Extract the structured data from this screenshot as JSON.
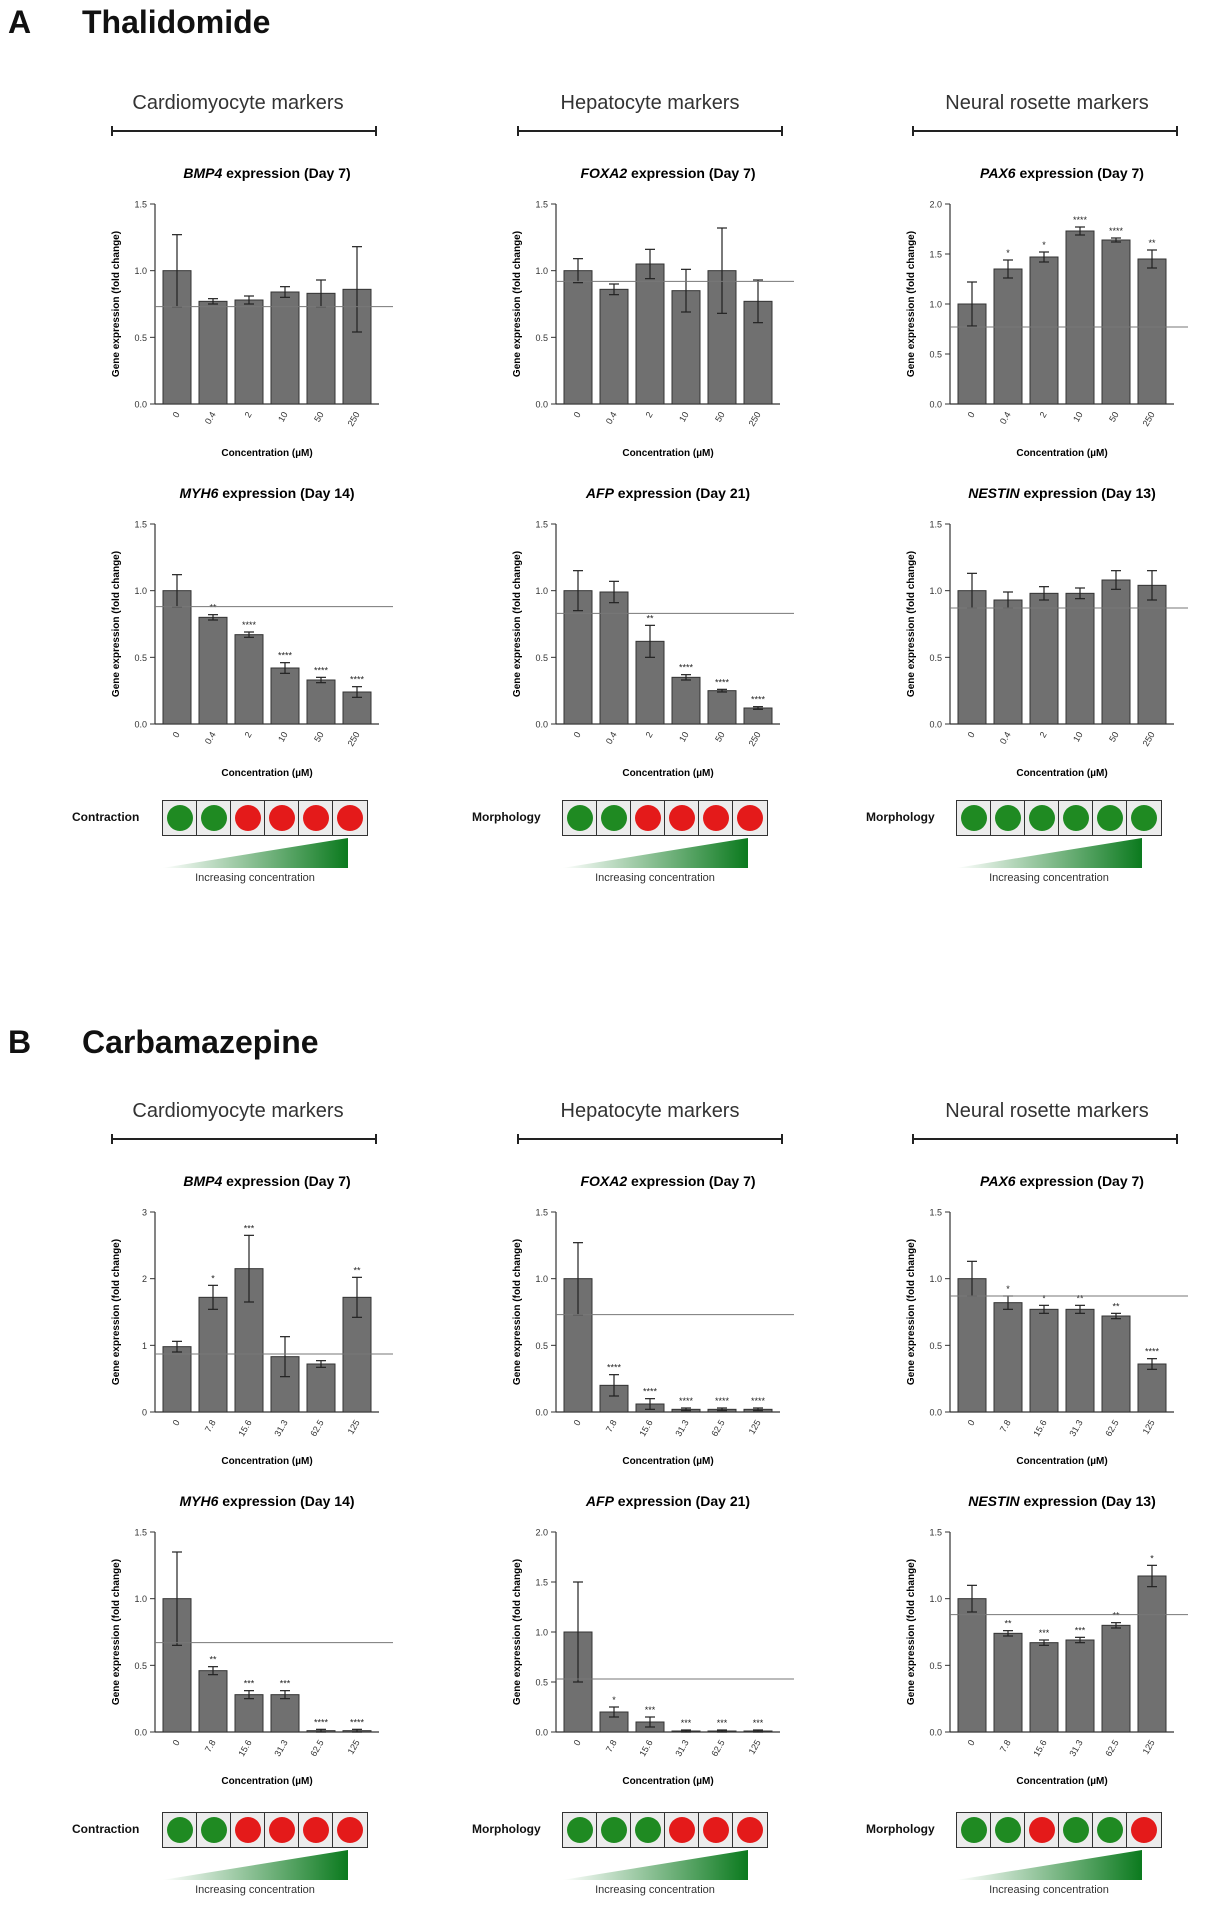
{
  "colors": {
    "bar": "#707070",
    "green": "#1f8a22",
    "red": "#e41a1a",
    "ramp_dark": "#0b7a1e"
  },
  "sections": [
    {
      "letter": "A",
      "title": "Thalidomide",
      "columns": [
        {
          "header": "Cardiomyocyte markers"
        },
        {
          "header": "Hepatocyte markers"
        },
        {
          "header": "Neural rosette markers"
        }
      ],
      "indicators": [
        {
          "label": "Contraction",
          "states": [
            "green",
            "green",
            "red",
            "red",
            "red",
            "red"
          ],
          "caption": "Increasing concentration"
        },
        {
          "label": "Morphology",
          "states": [
            "green",
            "green",
            "red",
            "red",
            "red",
            "red"
          ],
          "caption": "Increasing concentration"
        },
        {
          "label": "Morphology",
          "states": [
            "green",
            "green",
            "green",
            "green",
            "green",
            "green"
          ],
          "caption": "Increasing concentration"
        }
      ]
    },
    {
      "letter": "B",
      "title": "Carbamazepine",
      "columns": [
        {
          "header": "Cardiomyocyte markers"
        },
        {
          "header": "Hepatocyte markers"
        },
        {
          "header": "Neural rosette markers"
        }
      ],
      "indicators": [
        {
          "label": "Contraction",
          "states": [
            "green",
            "green",
            "red",
            "red",
            "red",
            "red"
          ],
          "caption": "Increasing concentration"
        },
        {
          "label": "Morphology",
          "states": [
            "green",
            "green",
            "green",
            "red",
            "red",
            "red"
          ],
          "caption": "Increasing concentration"
        },
        {
          "label": "Morphology",
          "states": [
            "green",
            "green",
            "red",
            "green",
            "green",
            "red"
          ],
          "caption": "Increasing concentration"
        }
      ]
    }
  ],
  "chart_data": [
    {
      "type": "bar",
      "gene": "BMP4",
      "title_suffix": " expression (Day 7)",
      "categories": [
        "0",
        "0.4",
        "2",
        "10",
        "50",
        "250"
      ],
      "values": [
        1.0,
        0.77,
        0.78,
        0.84,
        0.83,
        0.86
      ],
      "errors": [
        0.27,
        0.02,
        0.03,
        0.04,
        0.1,
        0.32
      ],
      "significance": [
        "",
        "",
        "",
        "",
        "",
        ""
      ],
      "threshold": 0.73,
      "threshold_label": "Threshold",
      "ylim": [
        0,
        1.5
      ],
      "yticks": [
        "0.0",
        "0.5",
        "1.0",
        "1.5"
      ],
      "ylabel": "Gene expression (fold change)",
      "xlabel": "Concentration (µM)"
    },
    {
      "type": "bar",
      "gene": "FOXA2",
      "title_suffix": " expression (Day 7)",
      "categories": [
        "0",
        "0.4",
        "2",
        "10",
        "50",
        "250"
      ],
      "values": [
        1.0,
        0.86,
        1.05,
        0.85,
        1.0,
        0.77
      ],
      "errors": [
        0.09,
        0.04,
        0.11,
        0.16,
        0.32,
        0.16
      ],
      "significance": [
        "",
        "",
        "",
        "",
        "",
        ""
      ],
      "threshold": 0.92,
      "threshold_label": "Threshold",
      "ylim": [
        0,
        1.5
      ],
      "yticks": [
        "0.0",
        "0.5",
        "1.0",
        "1.5"
      ],
      "ylabel": "Gene expression (fold change)",
      "xlabel": "Concentration (µM)"
    },
    {
      "type": "bar",
      "gene": "PAX6",
      "title_suffix": " expression (Day 7)",
      "categories": [
        "0",
        "0.4",
        "2",
        "10",
        "50",
        "250"
      ],
      "values": [
        1.0,
        1.35,
        1.47,
        1.73,
        1.64,
        1.45
      ],
      "errors": [
        0.22,
        0.09,
        0.05,
        0.04,
        0.02,
        0.09
      ],
      "significance": [
        "",
        "*",
        "*",
        "****",
        "****",
        "**"
      ],
      "threshold": 0.77,
      "threshold_label": "Threshold",
      "ylim": [
        0,
        2.0
      ],
      "yticks": [
        "0.0",
        "0.5",
        "1.0",
        "1.5",
        "2.0"
      ],
      "ylabel": "Gene expression (fold change)",
      "xlabel": "Concentration (µM)"
    },
    {
      "type": "bar",
      "gene": "MYH6",
      "title_suffix": " expression (Day 14)",
      "categories": [
        "0",
        "0.4",
        "2",
        "10",
        "50",
        "250"
      ],
      "values": [
        1.0,
        0.8,
        0.67,
        0.42,
        0.33,
        0.24
      ],
      "errors": [
        0.12,
        0.02,
        0.02,
        0.04,
        0.02,
        0.04
      ],
      "significance": [
        "",
        "**",
        "****",
        "****",
        "****",
        "****"
      ],
      "threshold": 0.88,
      "threshold_label": "Threshold",
      "ylim": [
        0,
        1.5
      ],
      "yticks": [
        "0.0",
        "0.5",
        "1.0",
        "1.5"
      ],
      "ylabel": "Gene expression (fold change)",
      "xlabel": "Concentration (µM)"
    },
    {
      "type": "bar",
      "gene": "AFP",
      "title_suffix": " expression (Day 21)",
      "categories": [
        "0",
        "0.4",
        "2",
        "10",
        "50",
        "250"
      ],
      "values": [
        1.0,
        0.99,
        0.62,
        0.35,
        0.25,
        0.12
      ],
      "errors": [
        0.15,
        0.08,
        0.12,
        0.02,
        0.01,
        0.01
      ],
      "significance": [
        "",
        "",
        "**",
        "****",
        "****",
        "****"
      ],
      "threshold": 0.83,
      "threshold_label": "Threshold",
      "ylim": [
        0,
        1.5
      ],
      "yticks": [
        "0.0",
        "0.5",
        "1.0",
        "1.5"
      ],
      "ylabel": "Gene expression (fold change)",
      "xlabel": "Concentration (µM)"
    },
    {
      "type": "bar",
      "gene": "NESTIN",
      "title_suffix": " expression (Day 13)",
      "categories": [
        "0",
        "0.4",
        "2",
        "10",
        "50",
        "250"
      ],
      "values": [
        1.0,
        0.93,
        0.98,
        0.98,
        1.08,
        1.04
      ],
      "errors": [
        0.13,
        0.06,
        0.05,
        0.04,
        0.07,
        0.11
      ],
      "significance": [
        "",
        "",
        "",
        "",
        "",
        ""
      ],
      "threshold": 0.87,
      "threshold_label": "Threshold",
      "ylim": [
        0,
        1.5
      ],
      "yticks": [
        "0.0",
        "0.5",
        "1.0",
        "1.5"
      ],
      "ylabel": "Gene expression (fold change)",
      "xlabel": "Concentration (µM)"
    },
    {
      "type": "bar",
      "gene": "BMP4",
      "title_suffix": " expression (Day 7)",
      "categories": [
        "0",
        "7.8",
        "15.6",
        "31.3",
        "62.5",
        "125"
      ],
      "values": [
        0.98,
        1.72,
        2.15,
        0.83,
        0.72,
        1.72
      ],
      "errors": [
        0.08,
        0.18,
        0.5,
        0.3,
        0.05,
        0.3
      ],
      "significance": [
        "",
        "*",
        "***",
        "",
        "",
        "**"
      ],
      "threshold": 0.87,
      "threshold_label": "Threshold",
      "ylim": [
        0,
        3
      ],
      "yticks": [
        "0",
        "1",
        "2",
        "3"
      ],
      "ylabel": "Gene expression (fold change)",
      "xlabel": "Concentration (µM)"
    },
    {
      "type": "bar",
      "gene": "FOXA2",
      "title_suffix": " expression (Day 7)",
      "categories": [
        "0",
        "7.8",
        "15.6",
        "31.3",
        "62.5",
        "125"
      ],
      "values": [
        1.0,
        0.2,
        0.06,
        0.02,
        0.02,
        0.02
      ],
      "errors": [
        0.27,
        0.08,
        0.04,
        0.01,
        0.01,
        0.01
      ],
      "significance": [
        "",
        "****",
        "****",
        "****",
        "****",
        "****"
      ],
      "threshold": 0.73,
      "threshold_label": "Threshold",
      "ylim": [
        0,
        1.5
      ],
      "yticks": [
        "0.0",
        "0.5",
        "1.0",
        "1.5"
      ],
      "ylabel": "Gene expression (fold change)",
      "xlabel": "Concentration (µM)"
    },
    {
      "type": "bar",
      "gene": "PAX6",
      "title_suffix": " expression (Day 7)",
      "categories": [
        "0",
        "7.8",
        "15.6",
        "31.3",
        "62.5",
        "125"
      ],
      "values": [
        1.0,
        0.82,
        0.77,
        0.77,
        0.72,
        0.36
      ],
      "errors": [
        0.13,
        0.05,
        0.03,
        0.03,
        0.02,
        0.04
      ],
      "significance": [
        "",
        "*",
        "*",
        "**",
        "**",
        "****"
      ],
      "threshold": 0.87,
      "threshold_label": "Threshold",
      "ylim": [
        0,
        1.5
      ],
      "yticks": [
        "0.0",
        "0.5",
        "1.0",
        "1.5"
      ],
      "ylabel": "Gene expression (fold change)",
      "xlabel": "Concentration (µM)"
    },
    {
      "type": "bar",
      "gene": "MYH6",
      "title_suffix": " expression (Day 14)",
      "categories": [
        "0",
        "7.8",
        "15.6",
        "31.3",
        "62.5",
        "125"
      ],
      "values": [
        1.0,
        0.46,
        0.28,
        0.28,
        0.01,
        0.01
      ],
      "errors": [
        0.35,
        0.03,
        0.03,
        0.03,
        0.01,
        0.01
      ],
      "significance": [
        "",
        "**",
        "***",
        "***",
        "****",
        "****"
      ],
      "threshold": 0.67,
      "threshold_label": "Threshold",
      "ylim": [
        0,
        1.5
      ],
      "yticks": [
        "0.0",
        "0.5",
        "1.0",
        "1.5"
      ],
      "ylabel": "Gene expression (fold change)",
      "xlabel": "Concentration (µM)"
    },
    {
      "type": "bar",
      "gene": "AFP",
      "title_suffix": " expression (Day 21)",
      "categories": [
        "0",
        "7.8",
        "15.6",
        "31.3",
        "62.5",
        "125"
      ],
      "values": [
        1.0,
        0.2,
        0.1,
        0.01,
        0.01,
        0.01
      ],
      "errors": [
        0.5,
        0.05,
        0.05,
        0.01,
        0.01,
        0.01
      ],
      "significance": [
        "",
        "*",
        "***",
        "***",
        "***",
        "***"
      ],
      "threshold": 0.53,
      "threshold_label": "Threshold",
      "ylim": [
        0,
        2.0
      ],
      "yticks": [
        "0.0",
        "0.5",
        "1.0",
        "1.5",
        "2.0"
      ],
      "ylabel": "Gene expression (fold change)",
      "xlabel": "Concentration (µM)"
    },
    {
      "type": "bar",
      "gene": "NESTIN",
      "title_suffix": " expression (Day 13)",
      "categories": [
        "0",
        "7.8",
        "15.6",
        "31.3",
        "62.5",
        "125"
      ],
      "values": [
        1.0,
        0.74,
        0.67,
        0.69,
        0.8,
        1.17
      ],
      "errors": [
        0.1,
        0.02,
        0.02,
        0.02,
        0.02,
        0.08
      ],
      "significance": [
        "",
        "**",
        "***",
        "***",
        "**",
        "*"
      ],
      "threshold": 0.88,
      "threshold_label": "Threshold",
      "ylim": [
        0,
        1.5
      ],
      "yticks": [
        "0.0",
        "0.5",
        "1.0",
        "1.5"
      ],
      "ylabel": "Gene expression (fold change)",
      "xlabel": "Concentration (µM)"
    }
  ]
}
